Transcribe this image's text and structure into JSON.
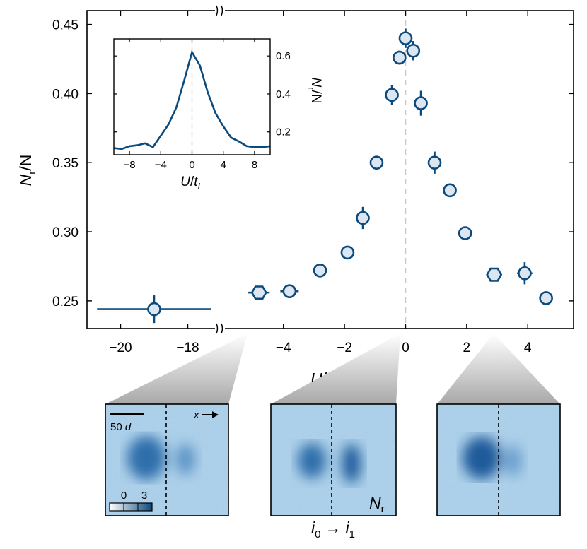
{
  "chart_data": [
    {
      "type": "scatter",
      "xlabel": {
        "main": "U",
        "div": "/",
        "den": "t",
        "sub": "L"
      },
      "ylabel": {
        "main": "N",
        "sub": "r",
        "rest": "/N"
      },
      "xlim_left": [
        -21,
        -17
      ],
      "xlim_right": [
        -5.8,
        5.5
      ],
      "ylim": [
        0.23,
        0.46
      ],
      "xticks_left": [
        -20,
        -18
      ],
      "xticks_right": [
        -4,
        -2,
        0,
        2,
        4
      ],
      "xtick_labels_left": [
        "−20",
        "−18"
      ],
      "xtick_labels_right": [
        "−4",
        "−2",
        "0",
        "2",
        "4"
      ],
      "yticks": [
        0.25,
        0.3,
        0.35,
        0.4,
        0.45
      ],
      "ytick_labels": [
        "0.25",
        "0.30",
        "0.35",
        "0.40",
        "0.45"
      ],
      "axis_break": true,
      "color": "#0b4a7c",
      "marker_fill": "#dce6f0",
      "points": [
        {
          "x": -19.0,
          "y": 0.244,
          "xerr": 1.7,
          "yerr": 0.01,
          "marker": "circle"
        },
        {
          "x": -4.8,
          "y": 0.256,
          "xerr": 0.35,
          "yerr": 0.0,
          "marker": "hexagon"
        },
        {
          "x": -3.8,
          "y": 0.257,
          "xerr": 0.3,
          "yerr": 0.003,
          "marker": "circle"
        },
        {
          "x": -2.8,
          "y": 0.272,
          "xerr": 0.2,
          "yerr": 0.0,
          "marker": "circle"
        },
        {
          "x": -1.9,
          "y": 0.285,
          "xerr": 0.0,
          "yerr": 0.0,
          "marker": "circle"
        },
        {
          "x": -1.4,
          "y": 0.31,
          "xerr": 0.0,
          "yerr": 0.008,
          "marker": "circle"
        },
        {
          "x": -0.95,
          "y": 0.35,
          "xerr": 0.0,
          "yerr": 0.0,
          "marker": "circle"
        },
        {
          "x": -0.45,
          "y": 0.399,
          "xerr": 0.0,
          "yerr": 0.007,
          "marker": "circle"
        },
        {
          "x": -0.2,
          "y": 0.426,
          "xerr": 0.0,
          "yerr": 0.005,
          "marker": "circle"
        },
        {
          "x": 0.0,
          "y": 0.44,
          "xerr": 0.0,
          "yerr": 0.007,
          "marker": "circle"
        },
        {
          "x": 0.25,
          "y": 0.431,
          "xerr": 0.0,
          "yerr": 0.007,
          "marker": "circle"
        },
        {
          "x": 0.5,
          "y": 0.393,
          "xerr": 0.0,
          "yerr": 0.009,
          "marker": "circle"
        },
        {
          "x": 0.95,
          "y": 0.35,
          "xerr": 0.0,
          "yerr": 0.008,
          "marker": "circle"
        },
        {
          "x": 1.45,
          "y": 0.33,
          "xerr": 0.0,
          "yerr": 0.0,
          "marker": "circle"
        },
        {
          "x": 1.95,
          "y": 0.299,
          "xerr": 0.0,
          "yerr": 0.0,
          "marker": "circle"
        },
        {
          "x": 2.9,
          "y": 0.269,
          "xerr": 0.0,
          "yerr": 0.0,
          "marker": "hexagon"
        },
        {
          "x": 3.9,
          "y": 0.27,
          "xerr": 0.25,
          "yerr": 0.008,
          "marker": "circle"
        },
        {
          "x": 4.6,
          "y": 0.252,
          "xerr": 0.2,
          "yerr": 0.0,
          "marker": "circle"
        }
      ]
    },
    {
      "type": "line",
      "role": "inset",
      "xlabel": {
        "main": "U",
        "div": "/",
        "den": "t",
        "sub": "L"
      },
      "ylabel": {
        "main": "N",
        "sub": "r",
        "rest": "/N"
      },
      "xlim": [
        -10,
        10
      ],
      "ylim": [
        0.08,
        0.69
      ],
      "xticks": [
        -8,
        -4,
        0,
        4,
        8
      ],
      "xtick_labels": [
        "−8",
        "−4",
        "0",
        "4",
        "8"
      ],
      "yticks": [
        0.2,
        0.4,
        0.6
      ],
      "ytick_labels": [
        "0.2",
        "0.4",
        "0.6"
      ],
      "x": [
        -10,
        -9,
        -8,
        -7,
        -6,
        -5,
        -4,
        -3,
        -2,
        -1,
        0,
        1,
        2,
        3,
        4,
        5,
        6,
        7,
        8,
        9,
        10
      ],
      "y": [
        0.115,
        0.11,
        0.125,
        0.13,
        0.14,
        0.12,
        0.18,
        0.24,
        0.33,
        0.47,
        0.62,
        0.55,
        0.41,
        0.3,
        0.23,
        0.17,
        0.15,
        0.125,
        0.12,
        0.12,
        0.125
      ]
    }
  ],
  "panels": {
    "scale_bar_label": "50",
    "scale_bar_unit": "d",
    "axis_arrow_label": "x",
    "colorbar_min": "0",
    "colorbar_max": "3",
    "nr_label": "N",
    "nr_sub": "r",
    "site_label_left": "i",
    "site_sub_left": "0",
    "site_arrow": "→",
    "site_label_right": "i",
    "site_sub_right": "1"
  },
  "colors": {
    "series": "#0b4a7c",
    "marker_fill": "#dce6f0",
    "zero_line": "#c8c8c8",
    "wedge": "#b8b8b8",
    "image_bg": "#a9cde8",
    "image_blob": "#1f5f9e"
  }
}
